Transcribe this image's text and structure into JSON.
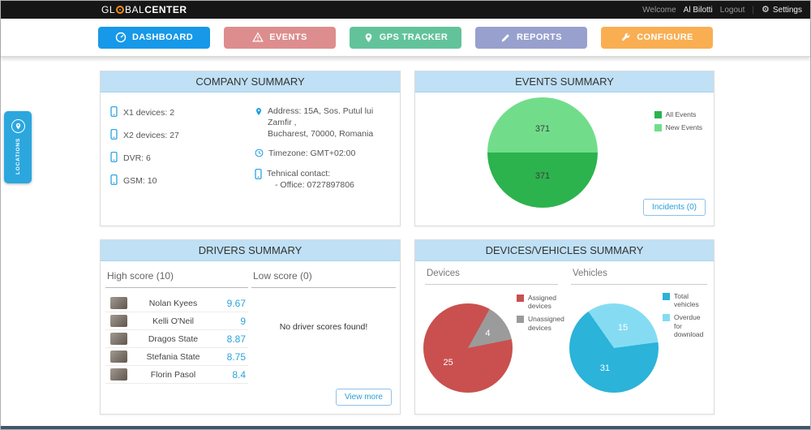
{
  "topbar": {
    "logo_left": "GL",
    "logo_mid": "BAL",
    "logo_right": "CENTER",
    "welcome_label": "Welcome",
    "username": "Al Bilotti",
    "logout_label": "Logout",
    "settings_label": "Settings"
  },
  "nav": {
    "items": [
      {
        "label": "DASHBOARD",
        "color": "#1798e8",
        "active": true
      },
      {
        "label": "EVENTS",
        "color": "#dd8d8d",
        "active": false
      },
      {
        "label": "GPS TRACKER",
        "color": "#62c39b",
        "active": false
      },
      {
        "label": "REPORTS",
        "color": "#98a0ce",
        "active": false
      },
      {
        "label": "CONFIGURE",
        "color": "#f9ae52",
        "active": false
      }
    ]
  },
  "locations_tab": {
    "label": "LOCATIONS",
    "color": "#2ba7de"
  },
  "company": {
    "title": "COMPANY SUMMARY",
    "devices": [
      {
        "label": "X1 devices: 2"
      },
      {
        "label": "X2 devices: 27"
      },
      {
        "label": "DVR: 6"
      },
      {
        "label": "GSM: 10"
      }
    ],
    "address_line1": "Address: 15A, Sos. Putul lui Zamfir ,",
    "address_line2": "Bucharest, 70000, Romania",
    "timezone": "Timezone: GMT+02:00",
    "contact_label": "Tehnical contact:",
    "contact_office": "- Office: 0727897806"
  },
  "events": {
    "title": "EVENTS SUMMARY",
    "legend": [
      {
        "label": "All Events",
        "color": "#2cb34d"
      },
      {
        "label": "New Events",
        "color": "#71dd8a"
      }
    ],
    "incidents_button": "Incidents (0)",
    "pie": {
      "start": 270,
      "label_color": "#3d3d3d",
      "slices": [
        {
          "name": "New Events",
          "value": 371,
          "color": "#71dd8a"
        },
        {
          "name": "All Events",
          "value": 371,
          "color": "#2cb34d"
        }
      ]
    }
  },
  "drivers": {
    "title": "DRIVERS SUMMARY",
    "high_title": "High score (10)",
    "low_title": "Low score (0)",
    "high_rows": [
      {
        "name": "Nolan Kyees",
        "score": "9.67"
      },
      {
        "name": "Kelli O'Neil",
        "score": "9"
      },
      {
        "name": "Dragos State",
        "score": "8.87"
      },
      {
        "name": "Stefania State",
        "score": "8.75"
      },
      {
        "name": "Florin Pasol",
        "score": "8.4"
      }
    ],
    "low_empty": "No driver scores found!",
    "view_more": "View more"
  },
  "devices_vehicles": {
    "title": "DEVICES/VEHICLES SUMMARY",
    "devices_label": "Devices",
    "vehicles_label": "Vehicles",
    "devices_legend": [
      {
        "label": "Assigned devices",
        "color": "#c9504e"
      },
      {
        "label": "Unassigned devices",
        "color": "#9b9b9b"
      }
    ],
    "vehicles_legend": [
      {
        "label": "Total vehicles",
        "color": "#2bb3d9"
      },
      {
        "label": "Overdue for download",
        "color": "#85dcf2"
      }
    ],
    "devices_pie": {
      "start": 29,
      "label_color": "#ffffff",
      "slices": [
        {
          "name": "Unassigned devices",
          "value": 4,
          "color": "#9b9b9b"
        },
        {
          "name": "Assigned devices",
          "value": 25,
          "color": "#c9504e"
        }
      ]
    },
    "vehicles_pie": {
      "start": 325,
      "label_color": "#ffffff",
      "slices": [
        {
          "name": "Overdue for download",
          "value": 15,
          "color": "#85dcf2"
        },
        {
          "name": "Total vehicles",
          "value": 31,
          "color": "#2bb3d9"
        }
      ]
    }
  },
  "chart_data": [
    {
      "type": "pie",
      "title": "EVENTS SUMMARY",
      "labels": [
        "New Events",
        "All Events"
      ],
      "values": [
        371,
        371
      ],
      "colors": [
        "#71dd8a",
        "#2cb34d"
      ],
      "legend_position": "top-right"
    },
    {
      "type": "pie",
      "title": "Devices",
      "labels": [
        "Unassigned devices",
        "Assigned devices"
      ],
      "values": [
        4,
        25
      ],
      "colors": [
        "#9b9b9b",
        "#c9504e"
      ],
      "legend_position": "right"
    },
    {
      "type": "pie",
      "title": "Vehicles",
      "labels": [
        "Overdue for download",
        "Total vehicles"
      ],
      "values": [
        15,
        31
      ],
      "colors": [
        "#85dcf2",
        "#2bb3d9"
      ],
      "legend_position": "right"
    }
  ]
}
